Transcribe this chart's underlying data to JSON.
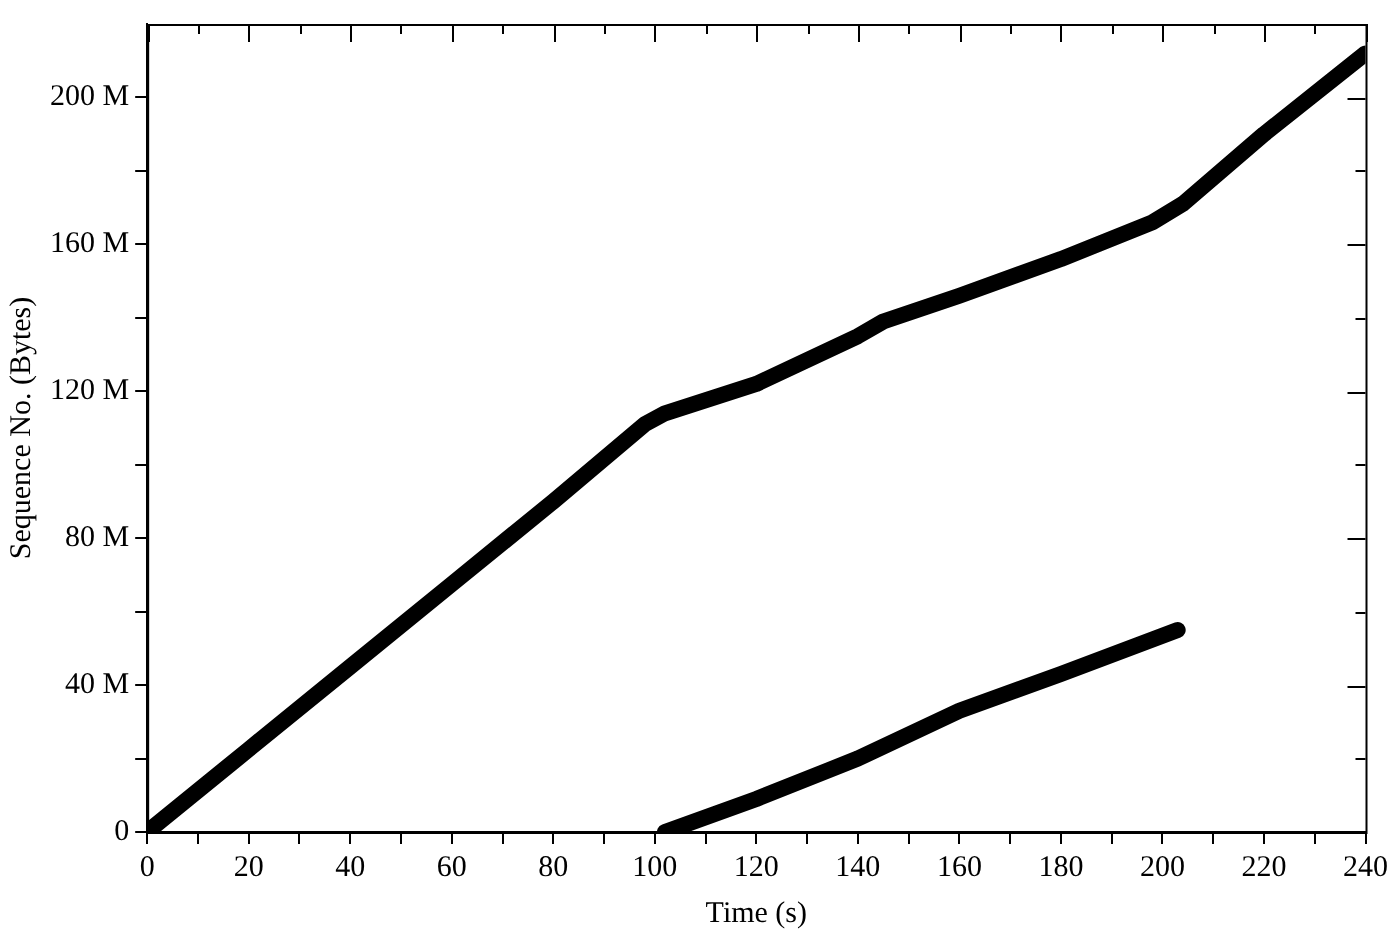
{
  "chart_data": {
    "type": "line",
    "xlabel": "Time (s)",
    "ylabel": "Sequence No. (Bytes)",
    "xlim": [
      0,
      240
    ],
    "ylim": [
      0,
      220
    ],
    "xticks": [
      0,
      {
        "value": 10,
        "label": null
      },
      20,
      {
        "value": 30,
        "label": null
      },
      40,
      {
        "value": 50,
        "label": null
      },
      60,
      {
        "value": 70,
        "label": null
      },
      80,
      {
        "value": 90,
        "label": null
      },
      100,
      {
        "value": 110,
        "label": null
      },
      120,
      {
        "value": 130,
        "label": null
      },
      140,
      {
        "value": 150,
        "label": null
      },
      160,
      {
        "value": 170,
        "label": null
      },
      180,
      {
        "value": 190,
        "label": null
      },
      200,
      {
        "value": 210,
        "label": null
      },
      220,
      {
        "value": 230,
        "label": null
      },
      240
    ],
    "yticks": [
      {
        "value": 0,
        "label": "0"
      },
      {
        "value": 20,
        "label": null
      },
      {
        "value": 40,
        "label": "40 M"
      },
      {
        "value": 60,
        "label": null
      },
      {
        "value": 80,
        "label": "80 M"
      },
      {
        "value": 100,
        "label": null
      },
      {
        "value": 120,
        "label": "120 M"
      },
      {
        "value": 140,
        "label": null
      },
      {
        "value": 160,
        "label": "160 M"
      },
      {
        "value": 180,
        "label": null
      },
      {
        "value": 200,
        "label": "200 M"
      }
    ],
    "grid": false,
    "legend": false,
    "marker": "none",
    "line_style": "solid",
    "series": [
      {
        "color": "#000000",
        "x": [
          0,
          20,
          40,
          60,
          80,
          98,
          102,
          120,
          140,
          145,
          160,
          180,
          198,
          204,
          220,
          240
        ],
        "values": [
          0,
          22.5,
          45,
          67.5,
          90,
          111,
          114,
          122,
          135,
          139,
          146,
          156,
          166,
          171,
          190,
          212
        ]
      },
      {
        "color": "#000000",
        "x": [
          102,
          120,
          140,
          160,
          180,
          203
        ],
        "values": [
          0,
          9,
          20,
          33,
          43,
          55
        ]
      }
    ]
  }
}
